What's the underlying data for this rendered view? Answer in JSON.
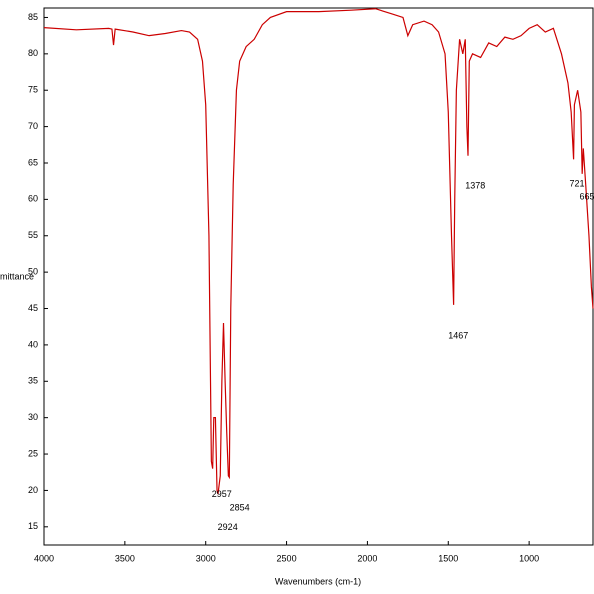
{
  "chart_data": {
    "type": "line",
    "x_label": "Wavenumbers (cm-1)",
    "y_label": "mittance",
    "xlim": [
      4000,
      605
    ],
    "ylim": [
      12.5,
      86.3
    ],
    "xticks": [
      4000,
      3500,
      3000,
      2500,
      2000,
      1500,
      1000
    ],
    "yticks": [
      15,
      20,
      25,
      30,
      35,
      40,
      45,
      50,
      55,
      60,
      65,
      70,
      75,
      80,
      85
    ],
    "x": [
      4000,
      3800,
      3600,
      3580,
      3570,
      3560,
      3450,
      3350,
      3250,
      3150,
      3100,
      3050,
      3020,
      3000,
      2980,
      2965,
      2957,
      2950,
      2940,
      2930,
      2924,
      2910,
      2900,
      2890,
      2880,
      2870,
      2860,
      2854,
      2845,
      2830,
      2810,
      2790,
      2750,
      2700,
      2650,
      2600,
      2500,
      2300,
      2100,
      1950,
      1850,
      1780,
      1750,
      1720,
      1650,
      1600,
      1560,
      1520,
      1500,
      1480,
      1467,
      1460,
      1450,
      1430,
      1410,
      1395,
      1385,
      1378,
      1370,
      1350,
      1300,
      1250,
      1200,
      1150,
      1100,
      1050,
      1000,
      950,
      900,
      850,
      800,
      760,
      740,
      725,
      720,
      700,
      680,
      672,
      665,
      650,
      630,
      615,
      605
    ],
    "series": [
      {
        "color": "#cc0000",
        "values": [
          83.6,
          83.3,
          83.5,
          83.4,
          81.2,
          83.4,
          83,
          82.5,
          82.8,
          83.2,
          83,
          82,
          79,
          73,
          55,
          24,
          23,
          30,
          30,
          20,
          19.5,
          22,
          35,
          43,
          35,
          28,
          22,
          21.8,
          45,
          62,
          75,
          79,
          81,
          82,
          84,
          85,
          85.8,
          85.8,
          86,
          86.2,
          85.5,
          85,
          82.5,
          84,
          84.5,
          84,
          83,
          80,
          72,
          55,
          45.5,
          60,
          75,
          82,
          80,
          82,
          70,
          66,
          79,
          80,
          79.5,
          81.5,
          81,
          82.3,
          82,
          82.5,
          83.5,
          84,
          83,
          83.5,
          80,
          76,
          72,
          65.5,
          73,
          75,
          72,
          63.5,
          67,
          62,
          55,
          48,
          45
        ]
      }
    ],
    "annotations": [
      {
        "text": "2957",
        "x": 2901,
        "y": 19.4
      },
      {
        "text": "2854",
        "x": 2790,
        "y": 17.6
      },
      {
        "text": "2924",
        "x": 2864,
        "y": 14.9
      },
      {
        "text": "1467",
        "x": 1438,
        "y": 41.2
      },
      {
        "text": "1378",
        "x": 1333,
        "y": 61.8
      },
      {
        "text": "721",
        "x": 704,
        "y": 62.1
      },
      {
        "text": "665",
        "x": 642,
        "y": 60.3
      }
    ]
  }
}
